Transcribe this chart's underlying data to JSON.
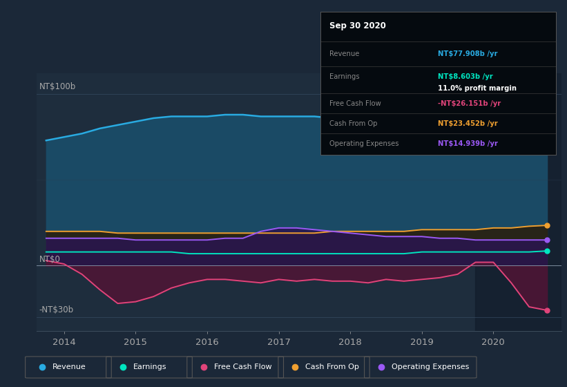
{
  "bg_color": "#1b2838",
  "plot_bg_color": "#1e2d3d",
  "text_color": "#aaaaaa",
  "grid_color": "#2a3d50",
  "x_ticks": [
    2014,
    2015,
    2016,
    2017,
    2018,
    2019,
    2020
  ],
  "ylim": [
    -38,
    112
  ],
  "years": [
    2013.75,
    2014.0,
    2014.25,
    2014.5,
    2014.75,
    2015.0,
    2015.25,
    2015.5,
    2015.75,
    2016.0,
    2016.25,
    2016.5,
    2016.75,
    2017.0,
    2017.25,
    2017.5,
    2017.75,
    2018.0,
    2018.25,
    2018.5,
    2018.75,
    2019.0,
    2019.25,
    2019.5,
    2019.75,
    2020.0,
    2020.25,
    2020.5,
    2020.75
  ],
  "revenue": [
    73,
    75,
    77,
    80,
    82,
    84,
    86,
    87,
    87,
    87,
    88,
    88,
    87,
    87,
    87,
    87,
    86,
    86,
    85,
    84,
    83,
    81,
    79,
    78,
    77,
    74,
    72,
    70,
    78
  ],
  "earnings": [
    8,
    8,
    8,
    8,
    8,
    8,
    8,
    8,
    7,
    7,
    7,
    7,
    7,
    7,
    7,
    7,
    7,
    7,
    7,
    7,
    7,
    8,
    8,
    8,
    8,
    8,
    8,
    8,
    8.6
  ],
  "free_cash_flow": [
    3,
    1,
    -5,
    -14,
    -22,
    -21,
    -18,
    -13,
    -10,
    -8,
    -8,
    -9,
    -10,
    -8,
    -9,
    -8,
    -9,
    -9,
    -10,
    -8,
    -9,
    -8,
    -7,
    -5,
    2,
    2,
    -10,
    -24,
    -26
  ],
  "cash_from_op": [
    20,
    20,
    20,
    20,
    19,
    19,
    19,
    19,
    19,
    19,
    19,
    19,
    19,
    19,
    19,
    19,
    20,
    20,
    20,
    20,
    20,
    21,
    21,
    21,
    21,
    22,
    22,
    23,
    23.5
  ],
  "operating_expenses": [
    16,
    16,
    16,
    16,
    16,
    15,
    15,
    15,
    15,
    15,
    16,
    16,
    20,
    22,
    22,
    21,
    20,
    19,
    18,
    17,
    17,
    17,
    16,
    16,
    15,
    15,
    15,
    15,
    15
  ],
  "revenue_color": "#29abe2",
  "revenue_fill": "#1a4a65",
  "earnings_color": "#00e5c0",
  "earnings_fill": "#0a3028",
  "free_cash_flow_color": "#e0447a",
  "free_cash_flow_fill": "#501535",
  "cash_from_op_color": "#f0a030",
  "cash_from_op_fill": "#2a2010",
  "operating_expenses_color": "#9b59f5",
  "operating_expenses_fill": "#2a1550",
  "highlight_start": 2019.75,
  "tooltip_bg": "#050a0f",
  "tooltip_title": "Sep 30 2020",
  "tooltip_revenue_val": "NT$77.908b /yr",
  "tooltip_earnings_val": "NT$8.603b /yr",
  "tooltip_margin": "11.0% profit margin",
  "tooltip_fcf_val": "-NT$26.151b /yr",
  "tooltip_cfo_val": "NT$23.452b /yr",
  "tooltip_opex_val": "NT$14.939b /yr",
  "legend_items": [
    "Revenue",
    "Earnings",
    "Free Cash Flow",
    "Cash From Op",
    "Operating Expenses"
  ],
  "legend_colors": [
    "#29abe2",
    "#00e5c0",
    "#e0447a",
    "#f0a030",
    "#9b59f5"
  ]
}
